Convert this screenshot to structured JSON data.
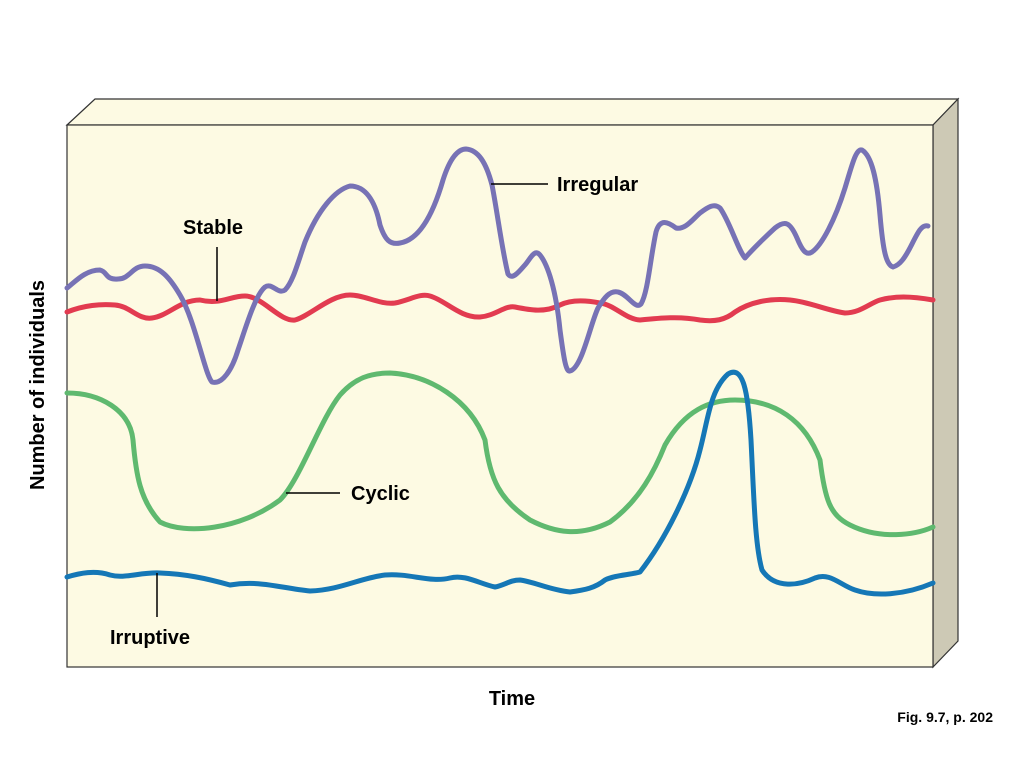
{
  "axes": {
    "y_label": "Number of individuals",
    "x_label": "Time"
  },
  "patterns": {
    "irregular": "Irregular",
    "stable": "Stable",
    "cyclic": "Cyclic",
    "irruptive": "Irruptive"
  },
  "caption": "Fig. 9.7, p. 202",
  "colors": {
    "irregular": "#7772b5",
    "stable": "#e23b50",
    "cyclic": "#5fb96f",
    "irruptive": "#1577b6",
    "panel_face": "#fdfae3",
    "panel_side": "#cdc9b5"
  }
}
